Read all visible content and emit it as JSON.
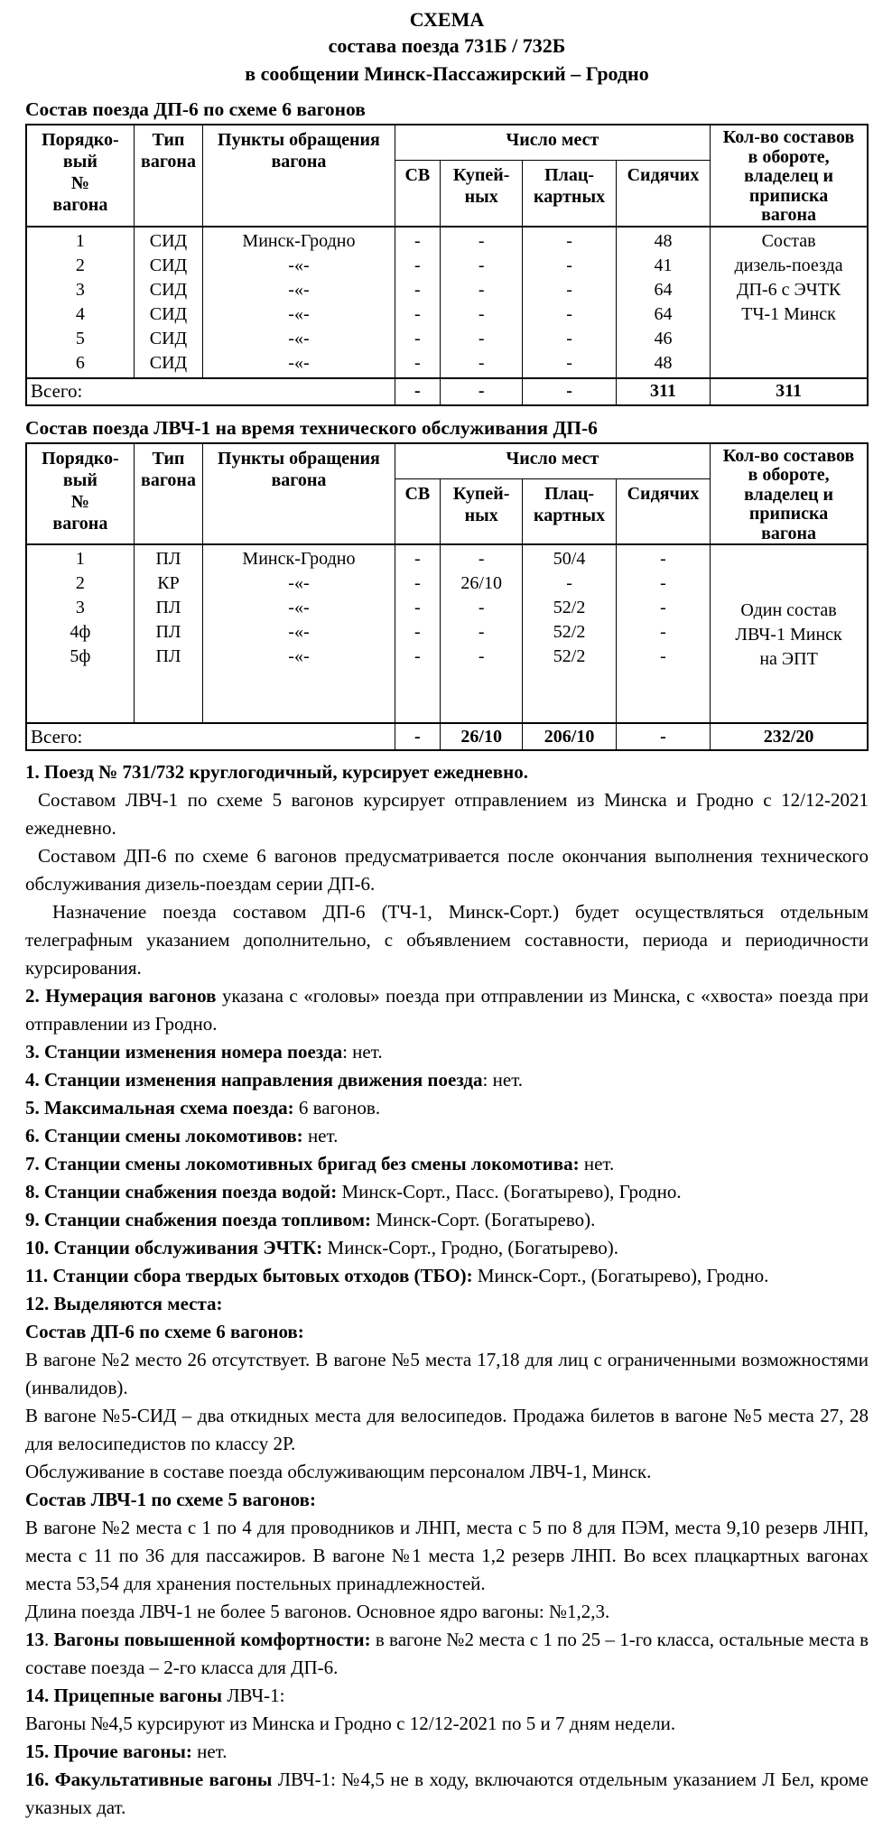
{
  "title": {
    "line1": "СХЕМА",
    "line2": "состава поезда  731Б / 732Б",
    "line3": "в сообщении Минск-Пассажирский – Гродно"
  },
  "table_headers": {
    "ordinal": "Порядко-\nвый\n№\nвагона",
    "type": "Тип\nвагона",
    "route": "Пункты обращения\nвагона",
    "seats": "Число  мест",
    "sv": "СВ",
    "kupe": "Купей-\nных",
    "platz": "Плац-\nкартных",
    "sid": "Сидячих",
    "fleet": "Кол-во составов\nв обороте,\nвладелец  и\nприписка\nвагона"
  },
  "table1": {
    "caption": "Состав поезда ДП-6 по схеме 6 вагонов",
    "body": {
      "ordinal": "1\n2\n3\n4\n5\n6",
      "type": "СИД\nСИД\nСИД\nСИД\nСИД\nСИД",
      "route": "Минск-Гродно\n-«-\n-«-\n-«-\n-«-\n-«-",
      "sv": "-\n-\n-\n-\n-\n-",
      "kupe": "-\n-\n-\n-\n-\n-",
      "platz": "-\n-\n-\n-\n-\n-",
      "sid": "48\n41\n64\n64\n46\n48",
      "fleet": "Состав\nдизель-поезда\nДП-6 с ЭЧТК\nТЧ-1 Минск"
    },
    "total": {
      "label": "Всего:",
      "sv": "-",
      "kupe": "-",
      "platz": "-",
      "sid": "311",
      "fleet": "311"
    }
  },
  "table2": {
    "caption": "Состав поезда ЛВЧ-1 на время технического обслуживания ДП-6",
    "body": {
      "ordinal": "1\n2\n3\n4ф\n5ф",
      "type": "ПЛ\nКР\nПЛ\nПЛ\nПЛ",
      "route": "Минск-Гродно\n-«-\n-«-\n-«-\n-«-",
      "sv": "-\n-\n-\n-\n-",
      "kupe": "-\n26/10\n-\n-\n-",
      "platz": "50/4\n-\n52/2\n52/2\n52/2",
      "sid": "-\n-\n-\n-\n-",
      "fleet": "Один состав\nЛВЧ-1 Минск\nна ЭПТ"
    },
    "total": {
      "label": "Всего:",
      "sv": "-",
      "kupe": "26/10",
      "platz": "206/10",
      "sid": "-",
      "fleet": "232/20"
    }
  },
  "notes": [
    {
      "align": "left",
      "indent": 0,
      "segments": [
        {
          "b": true,
          "t": "1. Поезд № 731/732  круглогодичный, курсирует ежедневно."
        }
      ]
    },
    {
      "align": "justify",
      "indent": 14,
      "segments": [
        {
          "b": false,
          "t": "Составом ЛВЧ-1 по схеме 5 вагонов курсирует отправлением из Минска и Гродно с 12/12-2021 ежедневно."
        }
      ]
    },
    {
      "align": "justify",
      "indent": 14,
      "segments": [
        {
          "b": false,
          "t": "Составом ДП-6 по схеме 6 вагонов предусматривается после окончания выполнения технического обслуживания дизель-поездам серии ДП-6."
        }
      ]
    },
    {
      "align": "justify",
      "indent": 30,
      "segments": [
        {
          "b": false,
          "t": "Назначение поезда составом ДП-6 (ТЧ-1, Минск-Сорт.) будет осуществляться отдельным телеграфным указанием дополнительно, с объявлением составности, периода и периодичности курсирования."
        }
      ]
    },
    {
      "align": "justify",
      "indent": 0,
      "segments": [
        {
          "b": true,
          "t": "2. Нумерация вагонов"
        },
        {
          "b": false,
          "t": " указана с «головы» поезда при отправлении из Минска, с «хвоста» поезда при отправлении из Гродно."
        }
      ]
    },
    {
      "align": "left",
      "indent": 0,
      "segments": [
        {
          "b": true,
          "t": "3. Станции изменения номера поезда"
        },
        {
          "b": false,
          "t": ": нет."
        }
      ]
    },
    {
      "align": "left",
      "indent": 0,
      "segments": [
        {
          "b": true,
          "t": "4. Станции изменения направления движения поезда"
        },
        {
          "b": false,
          "t": ": нет."
        }
      ]
    },
    {
      "align": "left",
      "indent": 0,
      "segments": [
        {
          "b": true,
          "t": "5. Максимальная схема поезда:"
        },
        {
          "b": false,
          "t": " 6 вагонов."
        }
      ]
    },
    {
      "align": "left",
      "indent": 0,
      "segments": [
        {
          "b": true,
          "t": "6. Станции смены локомотивов:"
        },
        {
          "b": false,
          "t": " нет."
        }
      ]
    },
    {
      "align": "left",
      "indent": 0,
      "segments": [
        {
          "b": true,
          "t": "7. Станции смены локомотивных бригад без смены локомотива:"
        },
        {
          "b": false,
          "t": " нет."
        }
      ]
    },
    {
      "align": "left",
      "indent": 0,
      "segments": [
        {
          "b": true,
          "t": "8. Станции снабжения поезда водой:"
        },
        {
          "b": false,
          "t": " Минск-Сорт., Пасс. (Богатырево), Гродно."
        }
      ]
    },
    {
      "align": "left",
      "indent": 0,
      "segments": [
        {
          "b": true,
          "t": "9. Станции снабжения поезда топливом:"
        },
        {
          "b": false,
          "t": " Минск-Сорт. (Богатырево)."
        }
      ]
    },
    {
      "align": "left",
      "indent": 0,
      "segments": [
        {
          "b": true,
          "t": "10. Станции обслуживания ЭЧТК:"
        },
        {
          "b": false,
          "t": " Минск-Сорт., Гродно, (Богатырево)."
        }
      ]
    },
    {
      "align": "justify",
      "indent": 0,
      "segments": [
        {
          "b": true,
          "t": "11. Станции сбора твердых бытовых отходов (ТБО):"
        },
        {
          "b": false,
          "t": " Минск-Сорт., (Богатырево), Гродно."
        }
      ]
    },
    {
      "align": "left",
      "indent": 0,
      "segments": [
        {
          "b": true,
          "t": "12. Выделяются места:"
        }
      ]
    },
    {
      "align": "left",
      "indent": 0,
      "segments": [
        {
          "b": true,
          "t": "Состав ДП-6 по схеме 6 вагонов:"
        }
      ]
    },
    {
      "align": "justify",
      "indent": 0,
      "segments": [
        {
          "b": false,
          "t": "В вагоне №2 место 26 отсутствует. В вагоне №5 места 17,18 для лиц с ограниченными возможностями (инвалидов)."
        }
      ]
    },
    {
      "align": "justify",
      "indent": 0,
      "segments": [
        {
          "b": false,
          "t": "В вагоне №5-СИД – два откидных места для велосипедов. Продажа билетов в вагоне №5 места 27, 28 для велосипедистов по классу 2Р."
        }
      ]
    },
    {
      "align": "left",
      "indent": 0,
      "segments": [
        {
          "b": false,
          "t": "Обслуживание в составе поезда обслуживающим персоналом ЛВЧ-1, Минск."
        }
      ]
    },
    {
      "align": "left",
      "indent": 0,
      "segments": [
        {
          "b": true,
          "t": "Состав ЛВЧ-1 по схеме 5 вагонов:"
        }
      ]
    },
    {
      "align": "justify",
      "indent": 0,
      "segments": [
        {
          "b": false,
          "t": "В вагоне №2 места с 1 по 4 для проводников и ЛНП, места с 5 по 8 для ПЭМ, места 9,10 резерв ЛНП, места с 11 по 36 для пассажиров. В вагоне №1 места 1,2 резерв ЛНП. Во всех плацкартных вагонах места 53,54 для хранения постельных принадлежностей."
        }
      ]
    },
    {
      "align": "left",
      "indent": 0,
      "segments": [
        {
          "b": false,
          "t": "Длина поезда ЛВЧ-1 не более 5 вагонов. Основное ядро вагоны: №1,2,3."
        }
      ]
    },
    {
      "align": "justify",
      "indent": 0,
      "segments": [
        {
          "b": true,
          "t": "13"
        },
        {
          "b": false,
          "t": ". "
        },
        {
          "b": true,
          "t": "Вагоны повышенной комфортности:"
        },
        {
          "b": false,
          "t": " в вагоне №2 места с 1 по 25 – 1-го класса, остальные места в составе поезда – 2-го класса для ДП-6."
        }
      ]
    },
    {
      "align": "left",
      "indent": 0,
      "segments": [
        {
          "b": true,
          "t": "14. Прицепные вагоны"
        },
        {
          "b": false,
          "t": " ЛВЧ-1:"
        }
      ]
    },
    {
      "align": "left",
      "indent": 0,
      "segments": [
        {
          "b": false,
          "t": "Вагоны №4,5 курсируют из Минска и Гродно с 12/12-2021 по 5 и 7 дням недели."
        }
      ]
    },
    {
      "align": "left",
      "indent": 0,
      "segments": [
        {
          "b": true,
          "t": "15. Прочие вагоны:"
        },
        {
          "b": false,
          "t": " нет."
        }
      ]
    },
    {
      "align": "justify",
      "indent": 0,
      "segments": [
        {
          "b": true,
          "t": "16. Факультативные вагоны"
        },
        {
          "b": false,
          "t": " ЛВЧ-1: №4,5 не в ходу, включаются отдельным указанием Л Бел, кроме указных дат."
        }
      ]
    }
  ]
}
